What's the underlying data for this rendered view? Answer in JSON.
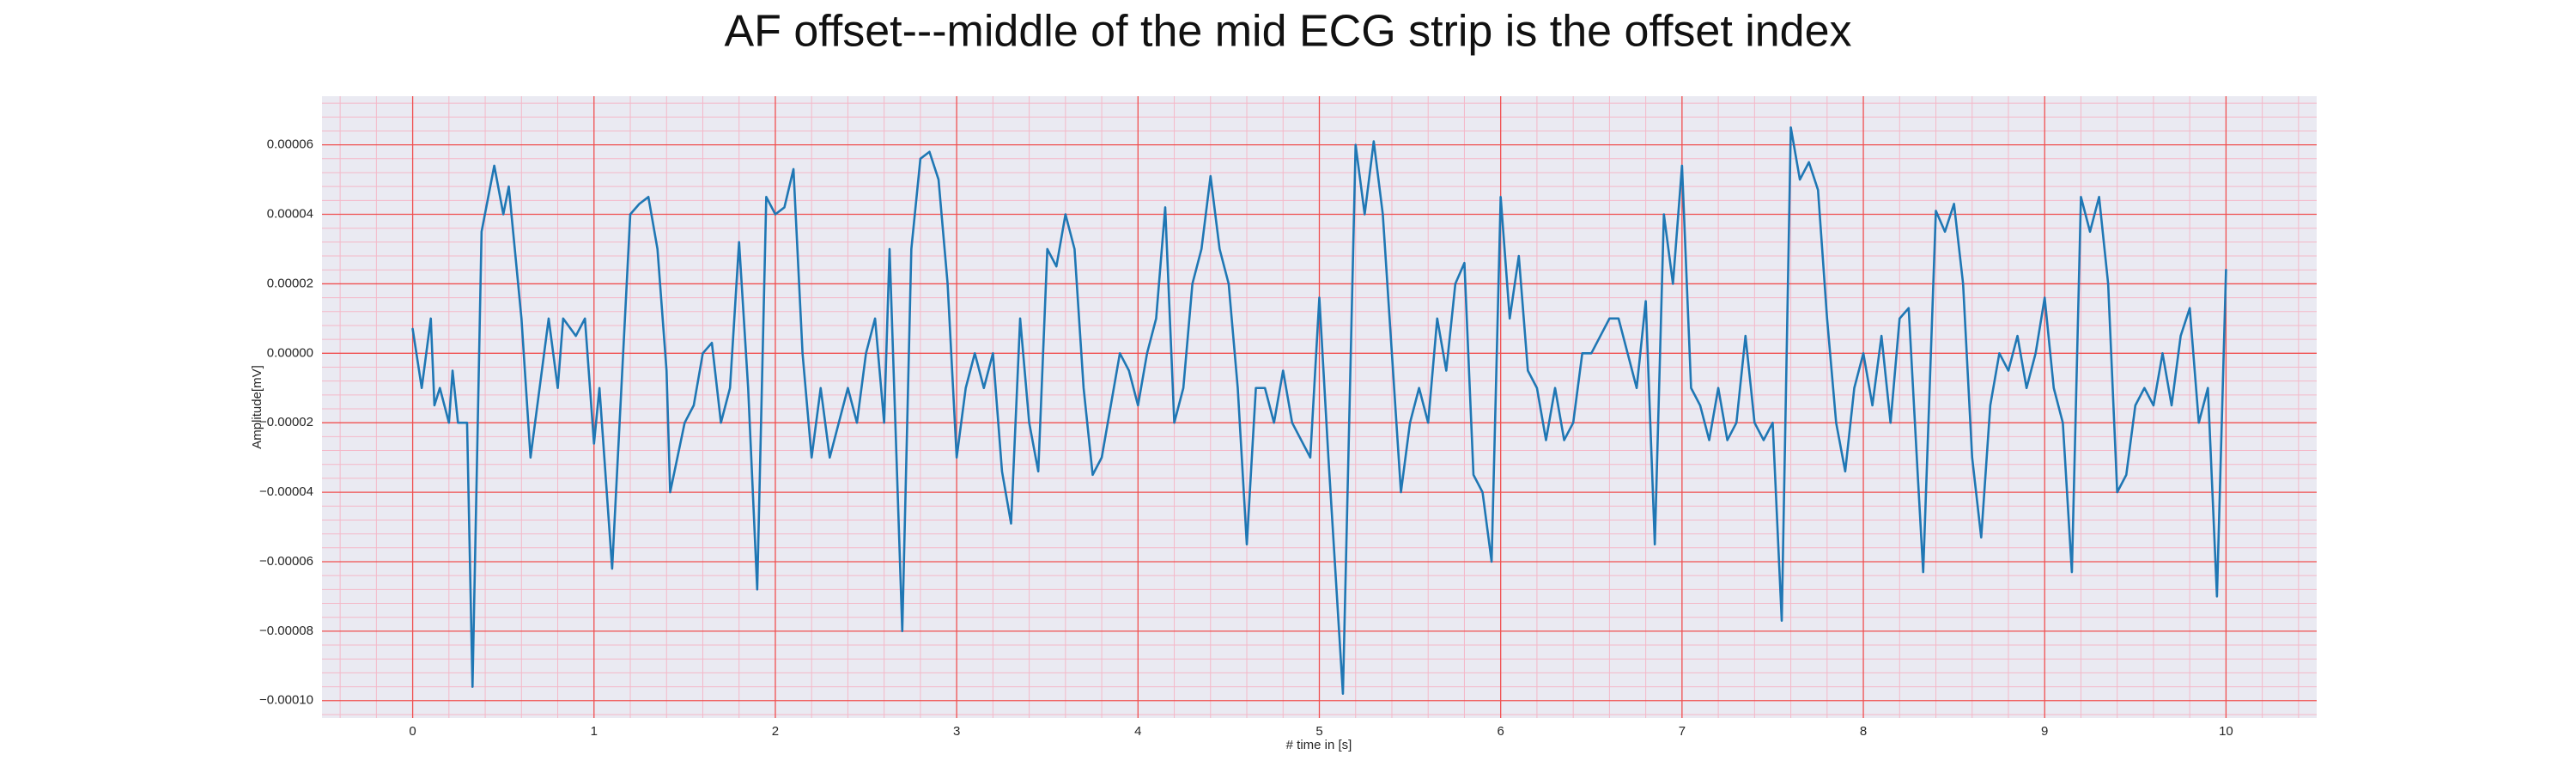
{
  "chart_data": {
    "type": "line",
    "title": "AF offset---middle of the mid ECG strip is the offset index",
    "x_label": "# time in [s]",
    "y_label": "Amplitude[mV]",
    "color": "#1f77b4",
    "background": "#eaeaf2",
    "grid": true,
    "grid_color": "#f05050",
    "minor_grid": true,
    "minor_grid_color": "#f4b8c8",
    "minor_divisions": 5,
    "xlim": [
      -0.5,
      10.5
    ],
    "xticks": [
      0,
      1,
      2,
      3,
      4,
      5,
      6,
      7,
      8,
      9,
      10
    ],
    "ylim": [
      -0.000105,
      7.4e-05
    ],
    "yticks": [
      {
        "value": -0.0001,
        "label": "−0.00010"
      },
      {
        "value": -8e-05,
        "label": "−0.00008"
      },
      {
        "value": -6e-05,
        "label": "−0.00006"
      },
      {
        "value": -4e-05,
        "label": "−0.00004"
      },
      {
        "value": -2e-05,
        "label": "−0.00002"
      },
      {
        "value": 0,
        "label": "0.00000"
      },
      {
        "value": 2e-05,
        "label": "0.00002"
      },
      {
        "value": 4e-05,
        "label": "0.00004"
      },
      {
        "value": 6e-05,
        "label": "0.00006"
      }
    ],
    "x": [
      0,
      0.05,
      0.1,
      0.12,
      0.15,
      0.2,
      0.22,
      0.25,
      0.3,
      0.33,
      0.38,
      0.45,
      0.5,
      0.53,
      0.6,
      0.65,
      0.7,
      0.75,
      0.8,
      0.83,
      0.9,
      0.95,
      1.0,
      1.03,
      1.1,
      1.2,
      1.25,
      1.3,
      1.35,
      1.4,
      1.42,
      1.5,
      1.55,
      1.6,
      1.65,
      1.7,
      1.75,
      1.8,
      1.85,
      1.9,
      1.95,
      2.0,
      2.05,
      2.1,
      2.15,
      2.2,
      2.25,
      2.3,
      2.35,
      2.4,
      2.45,
      2.5,
      2.55,
      2.6,
      2.63,
      2.7,
      2.75,
      2.8,
      2.85,
      2.9,
      2.95,
      3.0,
      3.05,
      3.1,
      3.15,
      3.2,
      3.25,
      3.3,
      3.35,
      3.4,
      3.45,
      3.5,
      3.55,
      3.6,
      3.65,
      3.7,
      3.75,
      3.8,
      3.85,
      3.9,
      3.95,
      4.0,
      4.05,
      4.1,
      4.15,
      4.2,
      4.25,
      4.3,
      4.35,
      4.4,
      4.45,
      4.5,
      4.55,
      4.6,
      4.65,
      4.7,
      4.75,
      4.8,
      4.85,
      4.9,
      4.95,
      5.0,
      5.05,
      5.13,
      5.2,
      5.25,
      5.3,
      5.35,
      5.45,
      5.5,
      5.55,
      5.6,
      5.65,
      5.7,
      5.75,
      5.8,
      5.85,
      5.9,
      5.95,
      6.0,
      6.05,
      6.1,
      6.15,
      6.2,
      6.25,
      6.3,
      6.35,
      6.4,
      6.45,
      6.5,
      6.55,
      6.6,
      6.65,
      6.7,
      6.75,
      6.8,
      6.85,
      6.9,
      6.95,
      7.0,
      7.05,
      7.1,
      7.15,
      7.2,
      7.25,
      7.3,
      7.35,
      7.4,
      7.45,
      7.5,
      7.55,
      7.6,
      7.65,
      7.7,
      7.75,
      7.8,
      7.85,
      7.9,
      7.95,
      8.0,
      8.05,
      8.1,
      8.15,
      8.2,
      8.25,
      8.3,
      8.33,
      8.4,
      8.45,
      8.5,
      8.55,
      8.6,
      8.65,
      8.7,
      8.75,
      8.8,
      8.85,
      8.9,
      8.95,
      9.0,
      9.05,
      9.1,
      9.15,
      9.2,
      9.25,
      9.3,
      9.35,
      9.4,
      9.45,
      9.5,
      9.55,
      9.6,
      9.65,
      9.7,
      9.75,
      9.8,
      9.85,
      9.9,
      9.95,
      10.0
    ],
    "values": [
      7e-06,
      -1e-05,
      1e-05,
      -1.5e-05,
      -1e-05,
      -2e-05,
      -5e-06,
      -2e-05,
      -2e-05,
      -9.6e-05,
      3.5e-05,
      5.4e-05,
      4e-05,
      4.8e-05,
      1e-05,
      -3e-05,
      -1e-05,
      1e-05,
      -1e-05,
      1e-05,
      5e-06,
      1e-05,
      -2.6e-05,
      -1e-05,
      -6.2e-05,
      4e-05,
      4.3e-05,
      4.5e-05,
      3e-05,
      -5e-06,
      -4e-05,
      -2e-05,
      -1.5e-05,
      0,
      3e-06,
      -2e-05,
      -1e-05,
      3.2e-05,
      -1e-05,
      -6.8e-05,
      4.5e-05,
      4e-05,
      4.2e-05,
      5.3e-05,
      0,
      -3e-05,
      -1e-05,
      -3e-05,
      -2e-05,
      -1e-05,
      -2e-05,
      0,
      1e-05,
      -2e-05,
      3e-05,
      -8e-05,
      3e-05,
      5.6e-05,
      5.8e-05,
      5e-05,
      2e-05,
      -3e-05,
      -1e-05,
      0,
      -1e-05,
      0,
      -3.4e-05,
      -4.9e-05,
      1e-05,
      -2e-05,
      -3.4e-05,
      3e-05,
      2.5e-05,
      4e-05,
      3e-05,
      -1e-05,
      -3.5e-05,
      -3e-05,
      -1.5e-05,
      0,
      -5e-06,
      -1.5e-05,
      0,
      1e-05,
      4.2e-05,
      -2e-05,
      -1e-05,
      2e-05,
      3e-05,
      5.1e-05,
      3e-05,
      2e-05,
      -1e-05,
      -5.5e-05,
      -1e-05,
      -1e-05,
      -2e-05,
      -5e-06,
      -2e-05,
      -2.5e-05,
      -3e-05,
      1.6e-05,
      -3e-05,
      -9.8e-05,
      6e-05,
      4e-05,
      6.1e-05,
      4e-05,
      -4e-05,
      -2e-05,
      -1e-05,
      -2e-05,
      1e-05,
      -5e-06,
      2e-05,
      2.6e-05,
      -3.5e-05,
      -4e-05,
      -6e-05,
      4.5e-05,
      1e-05,
      2.8e-05,
      -5e-06,
      -1e-05,
      -2.5e-05,
      -1e-05,
      -2.5e-05,
      -2e-05,
      0,
      0,
      5e-06,
      1e-05,
      1e-05,
      0,
      -1e-05,
      1.5e-05,
      -5.5e-05,
      4e-05,
      2e-05,
      5.4e-05,
      -1e-05,
      -1.5e-05,
      -2.5e-05,
      -1e-05,
      -2.5e-05,
      -2e-05,
      5e-06,
      -2e-05,
      -2.5e-05,
      -2e-05,
      -7.7e-05,
      6.5e-05,
      5e-05,
      5.5e-05,
      4.7e-05,
      1e-05,
      -2e-05,
      -3.4e-05,
      -1e-05,
      0,
      -1.5e-05,
      5e-06,
      -2e-05,
      1e-05,
      1.3e-05,
      -3.5e-05,
      -6.3e-05,
      4.1e-05,
      3.5e-05,
      4.3e-05,
      2e-05,
      -3e-05,
      -5.3e-05,
      -1.5e-05,
      0,
      -5e-06,
      5e-06,
      -1e-05,
      0,
      1.6e-05,
      -1e-05,
      -2e-05,
      -6.3e-05,
      4.5e-05,
      3.5e-05,
      4.5e-05,
      2e-05,
      -4e-05,
      -3.5e-05,
      -1.5e-05,
      -1e-05,
      -1.5e-05,
      0,
      -1.5e-05,
      5e-06,
      1.3e-05,
      -2e-05,
      -1e-05,
      -7e-05,
      2.4e-05
    ]
  }
}
